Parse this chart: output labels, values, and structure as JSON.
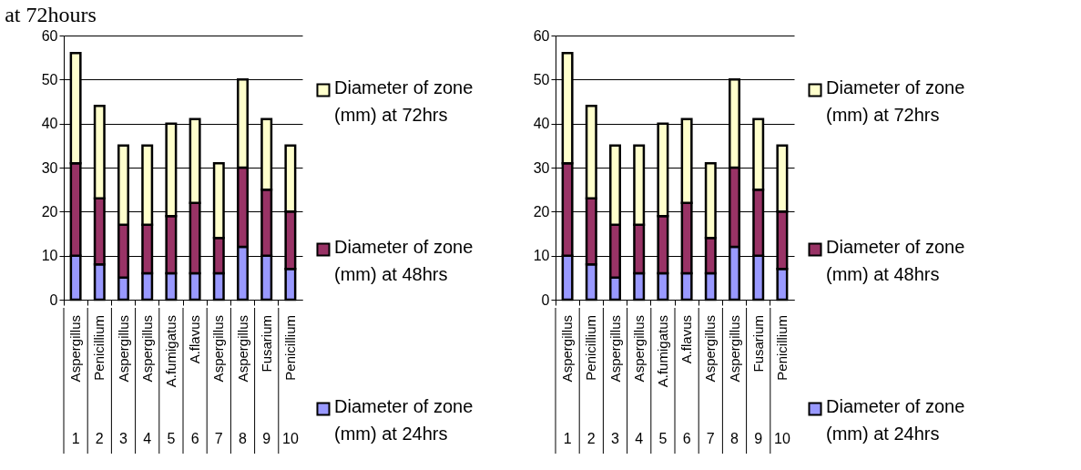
{
  "chart_data": [
    {
      "type": "bar",
      "title": "at 72hours",
      "stacked": true,
      "grid": "y",
      "legend": "right",
      "ylim": [
        0,
        60
      ],
      "yticks": [
        0,
        10,
        20,
        30,
        40,
        50,
        60
      ],
      "categories": [
        "Aspergillus 1",
        "Penicillium 2",
        "Aspergillus 3",
        "Aspergillus 4",
        "A.fumigatus 5",
        "A.flavus 6",
        "Aspergillus 7",
        "Aspergillus 8",
        "Fusarium 9",
        "Penicillium 10"
      ],
      "series": [
        {
          "name": "Diameter of zone (mm) at 24hrs",
          "color": "#9999ff",
          "values": [
            10,
            8,
            5,
            6,
            6,
            6,
            6,
            12,
            10,
            7
          ]
        },
        {
          "name": "Diameter of zone (mm) at 48hrs",
          "color": "#993366",
          "values": [
            21,
            15,
            12,
            11,
            13,
            16,
            8,
            18,
            15,
            13
          ]
        },
        {
          "name": "Diameter of zone (mm) at 72hrs",
          "color": "#ffffcc",
          "values": [
            25,
            21,
            18,
            18,
            21,
            19,
            17,
            20,
            16,
            15
          ]
        }
      ]
    },
    {
      "type": "bar",
      "stacked": true,
      "grid": "y",
      "legend": "right",
      "ylim": [
        0,
        60
      ],
      "yticks": [
        0,
        10,
        20,
        30,
        40,
        50,
        60
      ],
      "categories": [
        "Aspergillus 1",
        "Penicillium 2",
        "Aspergillus 3",
        "Aspergillus 4",
        "A.fumigatus 5",
        "A.flavus 6",
        "Aspergillus 7",
        "Aspergillus 8",
        "Fusarium 9",
        "Penicillium 10"
      ],
      "series": [
        {
          "name": "Diameter of zone (mm) at 24hrs",
          "color": "#9999ff",
          "values": [
            10,
            8,
            5,
            6,
            6,
            6,
            6,
            12,
            10,
            7
          ]
        },
        {
          "name": "Diameter of zone (mm) at 48hrs",
          "color": "#993366",
          "values": [
            21,
            15,
            12,
            11,
            13,
            16,
            8,
            18,
            15,
            13
          ]
        },
        {
          "name": "Diameter of zone (mm) at 72hrs",
          "color": "#ffffcc",
          "values": [
            25,
            21,
            18,
            18,
            21,
            19,
            17,
            20,
            16,
            15
          ]
        }
      ]
    }
  ]
}
